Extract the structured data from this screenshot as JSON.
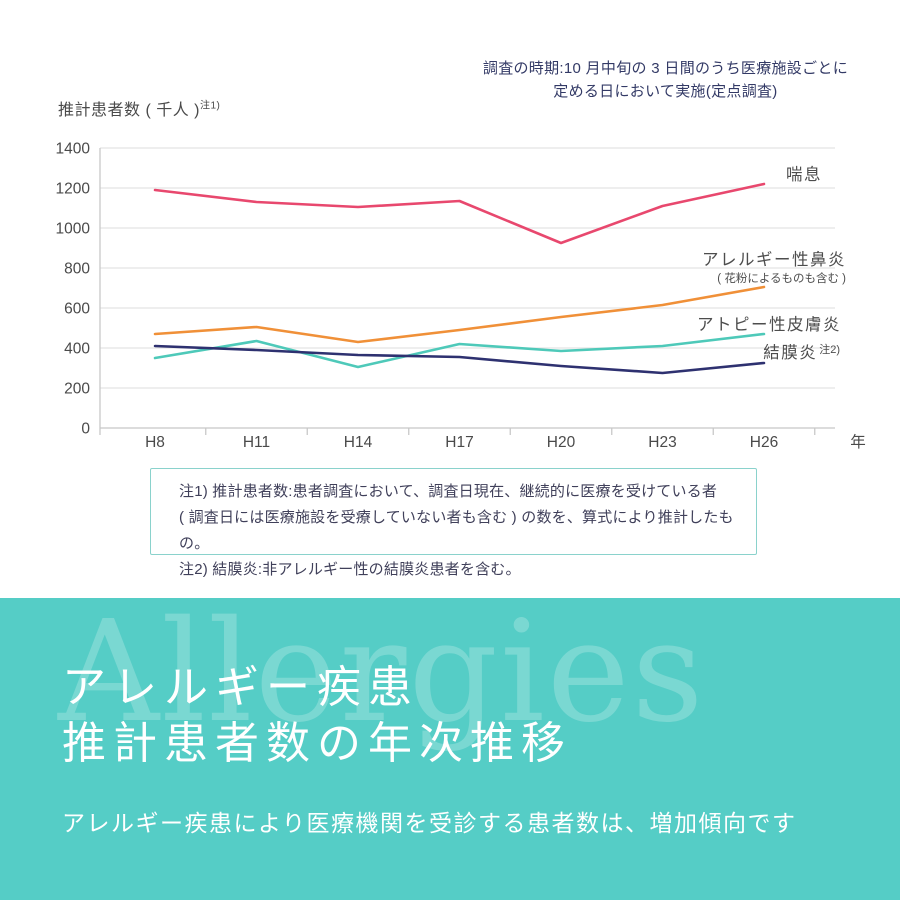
{
  "colors": {
    "accent_teal": "#55cdc6",
    "note_navy": "#333a66",
    "axis_text_gray": "#4d4d4d",
    "grid_gray": "#e4e4e4",
    "notes_border_teal": "#8ad2cc"
  },
  "survey_note": {
    "line1": "調査の時期:10 月中旬の 3 日間のうち医療施設ごとに",
    "line2": "定める日において実施(定点調査)"
  },
  "y_axis_label": {
    "text": "推計患者数 ( 千人 )",
    "sup": "注1)"
  },
  "chart_data": {
    "type": "line",
    "categories": [
      "H8",
      "H11",
      "H14",
      "H17",
      "H20",
      "H23",
      "H26"
    ],
    "x_axis_unit": "年",
    "ylabel": "推計患者数(千人)",
    "ylim": [
      0,
      1400
    ],
    "y_ticks": [
      0,
      200,
      400,
      600,
      800,
      1000,
      1200,
      1400
    ],
    "grid": true,
    "legend_position": "inline-right",
    "series": [
      {
        "key": "asthma",
        "name": "喘息",
        "color": "#e8486e",
        "values": [
          1190,
          1130,
          1105,
          1135,
          925,
          1110,
          1220
        ]
      },
      {
        "key": "allergic-rhinitis",
        "name": "アレルギー性鼻炎",
        "name_note": "( 花粉によるものも含む )",
        "color": "#f09038",
        "values": [
          470,
          505,
          430,
          490,
          555,
          615,
          705
        ]
      },
      {
        "key": "atopic-dermatitis",
        "name": "アトピー性皮膚炎",
        "color": "#4ec9b9",
        "values": [
          350,
          435,
          305,
          420,
          385,
          410,
          470
        ]
      },
      {
        "key": "conjunctivitis",
        "name": "結膜炎",
        "name_sup": "注2)",
        "color": "#2e3170",
        "values": [
          410,
          390,
          365,
          355,
          310,
          275,
          325
        ]
      }
    ]
  },
  "notes": {
    "lines": [
      "注1) 推計患者数:患者調査において、調査日現在、継続的に医療を受けている者",
      "( 調査日には医療施設を受療していない者も含む ) の数を、算式により推計したもの。",
      "注2) 結膜炎:非アレルギー性の結膜炎患者を含む。"
    ]
  },
  "footer": {
    "watermark": "Allergies",
    "title_line1": "アレルギー疾患",
    "title_line2": "推計患者数の年次推移",
    "subtitle": "アレルギー疾患により医療機関を受診する患者数は、増加傾向です"
  }
}
